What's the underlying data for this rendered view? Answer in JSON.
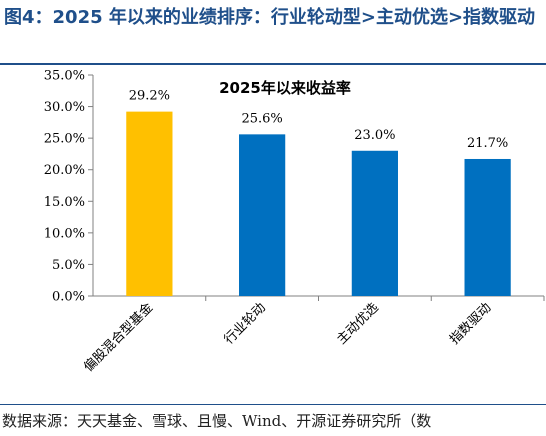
{
  "figure": {
    "title": "图4：2025 年以来的业绩排序：行业轮动型>主动优选>指数驱动",
    "source": "数据来源：天天基金、雪球、且慢、Wind、开源证券研究所（数"
  },
  "colors": {
    "highlight": "#FFC000",
    "bar": "#0070C0",
    "axis": "#808080",
    "title_blue": "#1F4F8A"
  },
  "chart_data": {
    "type": "bar",
    "title": "2025年以来收益率",
    "categories": [
      "偏股混合型基金",
      "行业轮动",
      "主动优选",
      "指数驱动"
    ],
    "values": [
      29.2,
      25.6,
      23.0,
      21.7
    ],
    "value_labels": [
      "29.2%",
      "25.6%",
      "23.0%",
      "21.7%"
    ],
    "bar_colors": [
      "#FFC000",
      "#0070C0",
      "#0070C0",
      "#0070C0"
    ],
    "ylim": [
      0,
      35
    ],
    "yticks": [
      0,
      5,
      10,
      15,
      20,
      25,
      30,
      35
    ],
    "ytick_labels": [
      "0.0%",
      "5.0%",
      "10.0%",
      "15.0%",
      "20.0%",
      "25.0%",
      "30.0%",
      "35.0%"
    ],
    "xlabel": "",
    "ylabel": "",
    "grid": false,
    "legend": "none"
  }
}
